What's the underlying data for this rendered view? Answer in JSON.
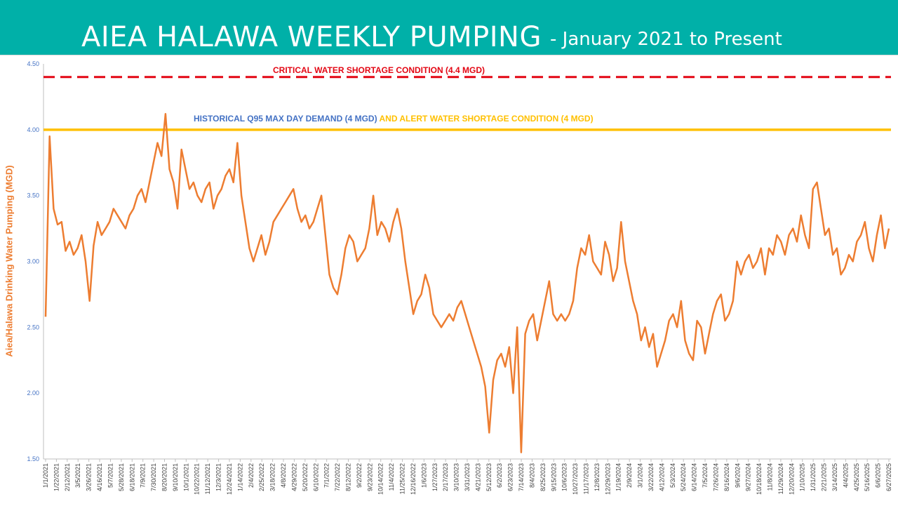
{
  "header": {
    "title_main": "AIEA HALAWA WEEKLY PUMPING",
    "title_sub": "- January 2021 to Present"
  },
  "colors": {
    "header_bg": "#00b0a8",
    "series": "#ed7d31",
    "critical": "#e30613",
    "alert": "#ffc000",
    "historical_text": "#4472c4"
  },
  "chart_data": {
    "type": "line",
    "ylabel": "Aiea/Halawa Drinking Water Pumping (MGD)",
    "ylim": [
      1.5,
      4.5
    ],
    "yticks": [
      "1.50",
      "2.00",
      "2.50",
      "3.00",
      "3.50",
      "4.00",
      "4.50"
    ],
    "ytick_values": [
      1.5,
      2.0,
      2.5,
      3.0,
      3.5,
      4.0,
      4.5
    ],
    "grid": false,
    "xtick_labels": [
      "1/1/2021",
      "1/22/2021",
      "2/12/2021",
      "3/5/2021",
      "3/26/2021",
      "4/16/2021",
      "5/7/2021",
      "5/28/2021",
      "6/18/2021",
      "7/9/2021",
      "7/30/2021",
      "8/20/2021",
      "9/10/2021",
      "10/1/2021",
      "10/22/2021",
      "11/12/2021",
      "12/3/2021",
      "12/24/2021",
      "1/14/2022",
      "2/4/2022",
      "2/25/2022",
      "3/18/2022",
      "4/8/2022",
      "4/29/2022",
      "5/20/2022",
      "6/10/2022",
      "7/1/2022",
      "7/22/2022",
      "8/12/2022",
      "9/2/2022",
      "9/23/2022",
      "10/14/2022",
      "11/4/2022",
      "11/25/2022",
      "12/16/2022",
      "1/6/2023",
      "1/27/2023",
      "2/17/2023",
      "3/10/2023",
      "3/31/2023",
      "4/21/2023",
      "5/12/2023",
      "6/2/2023",
      "6/23/2023",
      "7/14/2023",
      "8/4/2023",
      "8/25/2023",
      "9/15/2023",
      "10/6/2023",
      "10/27/2023",
      "11/17/2023",
      "12/8/2023",
      "12/29/2023",
      "1/19/2024",
      "2/9/2024",
      "3/1/2024",
      "3/22/2024",
      "4/12/2024",
      "5/3/2024",
      "5/24/2024",
      "6/14/2024",
      "7/5/2024",
      "7/26/2024",
      "8/16/2024",
      "9/6/2024",
      "9/27/2024",
      "10/18/2024",
      "11/8/2024",
      "11/29/2024",
      "12/20/2024",
      "1/10/2025",
      "1/31/2025",
      "2/21/2025",
      "3/14/2025",
      "4/4/2025",
      "4/25/2025",
      "5/16/2025",
      "6/6/2025",
      "6/27/2025"
    ],
    "reference_lines": [
      {
        "label": "CRITICAL WATER SHORTAGE CONDITION (4.4 MGD)",
        "y": 4.4,
        "style": "dashed",
        "color": "#e30613"
      },
      {
        "label": "HISTORICAL Q95 MAX DAY DEMAND (4 MGD)",
        "label2": "AND ALERT WATER SHORTAGE CONDITION (4 MGD)",
        "y": 4.0,
        "style": "solid",
        "color": "#ffc000"
      }
    ],
    "series": [
      {
        "values": [
          2.58,
          3.95,
          3.4,
          3.28,
          3.3,
          3.08,
          3.15,
          3.05,
          3.1,
          3.2,
          3.0,
          2.7,
          3.12,
          3.3,
          3.2,
          3.25,
          3.3,
          3.4,
          3.35,
          3.3,
          3.25,
          3.35,
          3.4,
          3.5,
          3.55,
          3.45,
          3.6,
          3.75,
          3.9,
          3.8,
          4.12,
          3.7,
          3.6,
          3.4,
          3.85,
          3.7,
          3.55,
          3.6,
          3.5,
          3.45,
          3.55,
          3.6,
          3.4,
          3.5,
          3.55,
          3.65,
          3.7,
          3.6,
          3.9,
          3.5,
          3.3,
          3.1,
          3.0,
          3.1,
          3.2,
          3.05,
          3.15,
          3.3,
          3.35,
          3.4,
          3.45,
          3.5,
          3.55,
          3.4,
          3.3,
          3.35,
          3.25,
          3.3,
          3.4,
          3.5,
          3.2,
          2.9,
          2.8,
          2.75,
          2.9,
          3.1,
          3.2,
          3.15,
          3.0,
          3.05,
          3.1,
          3.25,
          3.5,
          3.2,
          3.3,
          3.25,
          3.15,
          3.3,
          3.4,
          3.25,
          3.0,
          2.8,
          2.6,
          2.7,
          2.75,
          2.9,
          2.8,
          2.6,
          2.55,
          2.5,
          2.55,
          2.6,
          2.55,
          2.65,
          2.7,
          2.6,
          2.5,
          2.4,
          2.3,
          2.2,
          2.05,
          1.7,
          2.1,
          2.25,
          2.3,
          2.2,
          2.35,
          2.0,
          2.5,
          1.55,
          2.45,
          2.55,
          2.6,
          2.4,
          2.55,
          2.7,
          2.85,
          2.6,
          2.55,
          2.6,
          2.55,
          2.6,
          2.7,
          2.95,
          3.1,
          3.05,
          3.2,
          3.0,
          2.95,
          2.9,
          3.15,
          3.05,
          2.85,
          2.95,
          3.3,
          3.0,
          2.85,
          2.7,
          2.6,
          2.4,
          2.5,
          2.35,
          2.45,
          2.2,
          2.3,
          2.4,
          2.55,
          2.6,
          2.5,
          2.7,
          2.4,
          2.3,
          2.25,
          2.55,
          2.5,
          2.3,
          2.45,
          2.6,
          2.7,
          2.75,
          2.55,
          2.6,
          2.7,
          3.0,
          2.9,
          3.0,
          3.05,
          2.95,
          3.0,
          3.1,
          2.9,
          3.1,
          3.05,
          3.2,
          3.15,
          3.05,
          3.2,
          3.25,
          3.15,
          3.35,
          3.2,
          3.1,
          3.55,
          3.6,
          3.4,
          3.2,
          3.25,
          3.05,
          3.1,
          2.9,
          2.95,
          3.05,
          3.0,
          3.15,
          3.2,
          3.3,
          3.1,
          3.0,
          3.2,
          3.35,
          3.1,
          3.25
        ]
      }
    ]
  }
}
